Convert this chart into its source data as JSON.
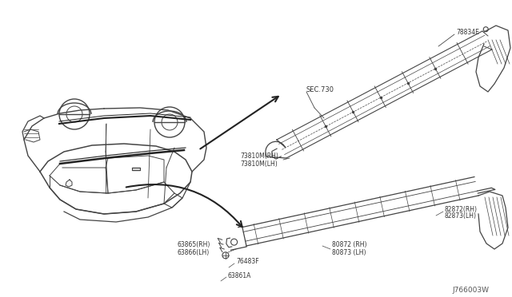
{
  "bg_color": "#ffffff",
  "diagram_code": "J766003W",
  "labels": {
    "sec730": "SEC.730",
    "part_78834E": "78834E",
    "part_73810M_RH": "73810M(RH)",
    "part_73810M_LH": "73810M(LH)",
    "part_82872_RH": "82872(RH)",
    "part_82873_LH": "82873(LH)",
    "part_80872_RH": "80872 (RH)",
    "part_80873_LH": "80873 (LH)",
    "part_63865_RH": "63865(RH)",
    "part_63866_LH": "63866(LH)",
    "part_76483F": "76483F",
    "part_63861A": "63861A"
  },
  "line_color": "#444444",
  "text_color": "#333333",
  "font_size": 5.5,
  "arrow_color": "#222222"
}
